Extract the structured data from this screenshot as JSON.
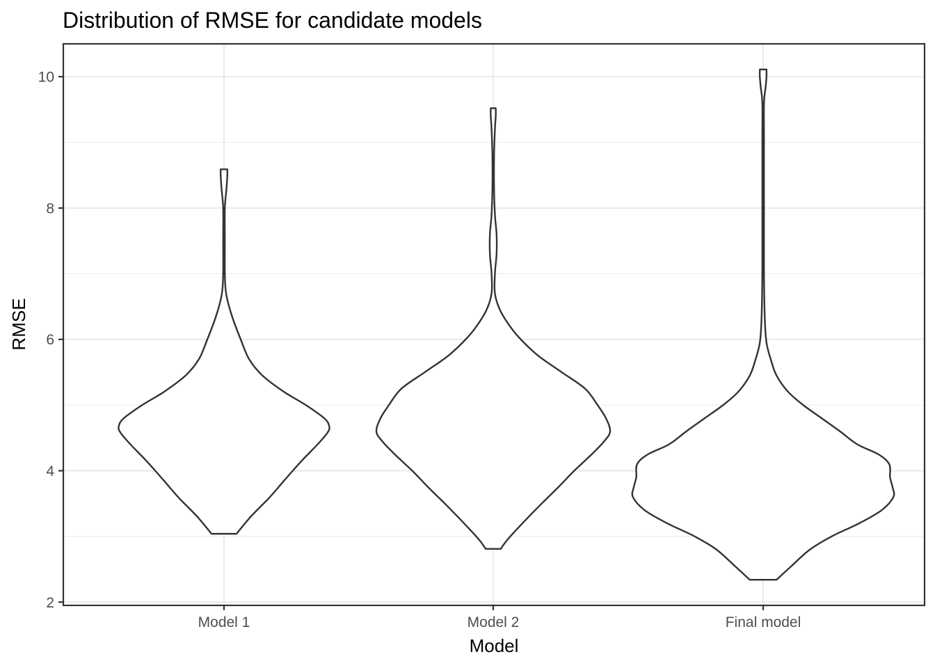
{
  "chart_data": {
    "type": "violin",
    "title": "Distribution of RMSE for candidate models",
    "xlabel": "Model",
    "ylabel": "RMSE",
    "categories": [
      "Model 1",
      "Model 2",
      "Final model"
    ],
    "ylim": [
      1.95,
      10.5
    ],
    "yticks": [
      2,
      4,
      6,
      8,
      10
    ],
    "grid": true,
    "legend": "none",
    "series": [
      {
        "category": "Model 1",
        "min": 3.04,
        "max": 8.59,
        "density_profile": [
          [
            3.04,
            0.15
          ],
          [
            3.3,
            0.32
          ],
          [
            3.6,
            0.55
          ],
          [
            3.85,
            0.72
          ],
          [
            4.15,
            0.93
          ],
          [
            4.4,
            1.12
          ],
          [
            4.58,
            1.24
          ],
          [
            4.68,
            1.26
          ],
          [
            4.8,
            1.2
          ],
          [
            5.0,
            0.98
          ],
          [
            5.2,
            0.72
          ],
          [
            5.45,
            0.46
          ],
          [
            5.7,
            0.3
          ],
          [
            6.0,
            0.2
          ],
          [
            6.3,
            0.11
          ],
          [
            6.55,
            0.05
          ],
          [
            6.75,
            0.02
          ],
          [
            7.0,
            0.01
          ],
          [
            7.5,
            0.01
          ],
          [
            8.0,
            0.01
          ],
          [
            8.3,
            0.03
          ],
          [
            8.5,
            0.04
          ],
          [
            8.59,
            0.04
          ]
        ]
      },
      {
        "category": "Model 2",
        "min": 2.81,
        "max": 9.52,
        "density_profile": [
          [
            2.81,
            0.09
          ],
          [
            2.95,
            0.17
          ],
          [
            3.2,
            0.35
          ],
          [
            3.5,
            0.58
          ],
          [
            3.75,
            0.78
          ],
          [
            4.0,
            0.97
          ],
          [
            4.25,
            1.18
          ],
          [
            4.45,
            1.33
          ],
          [
            4.6,
            1.4
          ],
          [
            4.8,
            1.35
          ],
          [
            5.0,
            1.25
          ],
          [
            5.25,
            1.1
          ],
          [
            5.5,
            0.82
          ],
          [
            5.75,
            0.54
          ],
          [
            6.0,
            0.33
          ],
          [
            6.2,
            0.2
          ],
          [
            6.45,
            0.08
          ],
          [
            6.7,
            0.02
          ],
          [
            7.0,
            0.02
          ],
          [
            7.3,
            0.04
          ],
          [
            7.6,
            0.04
          ],
          [
            7.9,
            0.02
          ],
          [
            8.3,
            0.01
          ],
          [
            8.8,
            0.01
          ],
          [
            9.2,
            0.02
          ],
          [
            9.4,
            0.03
          ],
          [
            9.52,
            0.03
          ]
        ]
      },
      {
        "category": "Final model",
        "min": 2.34,
        "max": 10.11,
        "density_profile": [
          [
            2.34,
            0.16
          ],
          [
            2.55,
            0.34
          ],
          [
            2.8,
            0.56
          ],
          [
            3.0,
            0.82
          ],
          [
            3.2,
            1.15
          ],
          [
            3.4,
            1.42
          ],
          [
            3.6,
            1.56
          ],
          [
            3.75,
            1.55
          ],
          [
            3.9,
            1.52
          ],
          [
            4.1,
            1.51
          ],
          [
            4.25,
            1.38
          ],
          [
            4.4,
            1.13
          ],
          [
            4.6,
            0.92
          ],
          [
            4.8,
            0.7
          ],
          [
            5.0,
            0.48
          ],
          [
            5.2,
            0.3
          ],
          [
            5.45,
            0.16
          ],
          [
            5.7,
            0.09
          ],
          [
            5.95,
            0.04
          ],
          [
            6.3,
            0.02
          ],
          [
            7.0,
            0.01
          ],
          [
            8.0,
            0.01
          ],
          [
            9.0,
            0.01
          ],
          [
            9.6,
            0.01
          ],
          [
            9.85,
            0.03
          ],
          [
            10.0,
            0.04
          ],
          [
            10.11,
            0.04
          ]
        ]
      }
    ]
  }
}
